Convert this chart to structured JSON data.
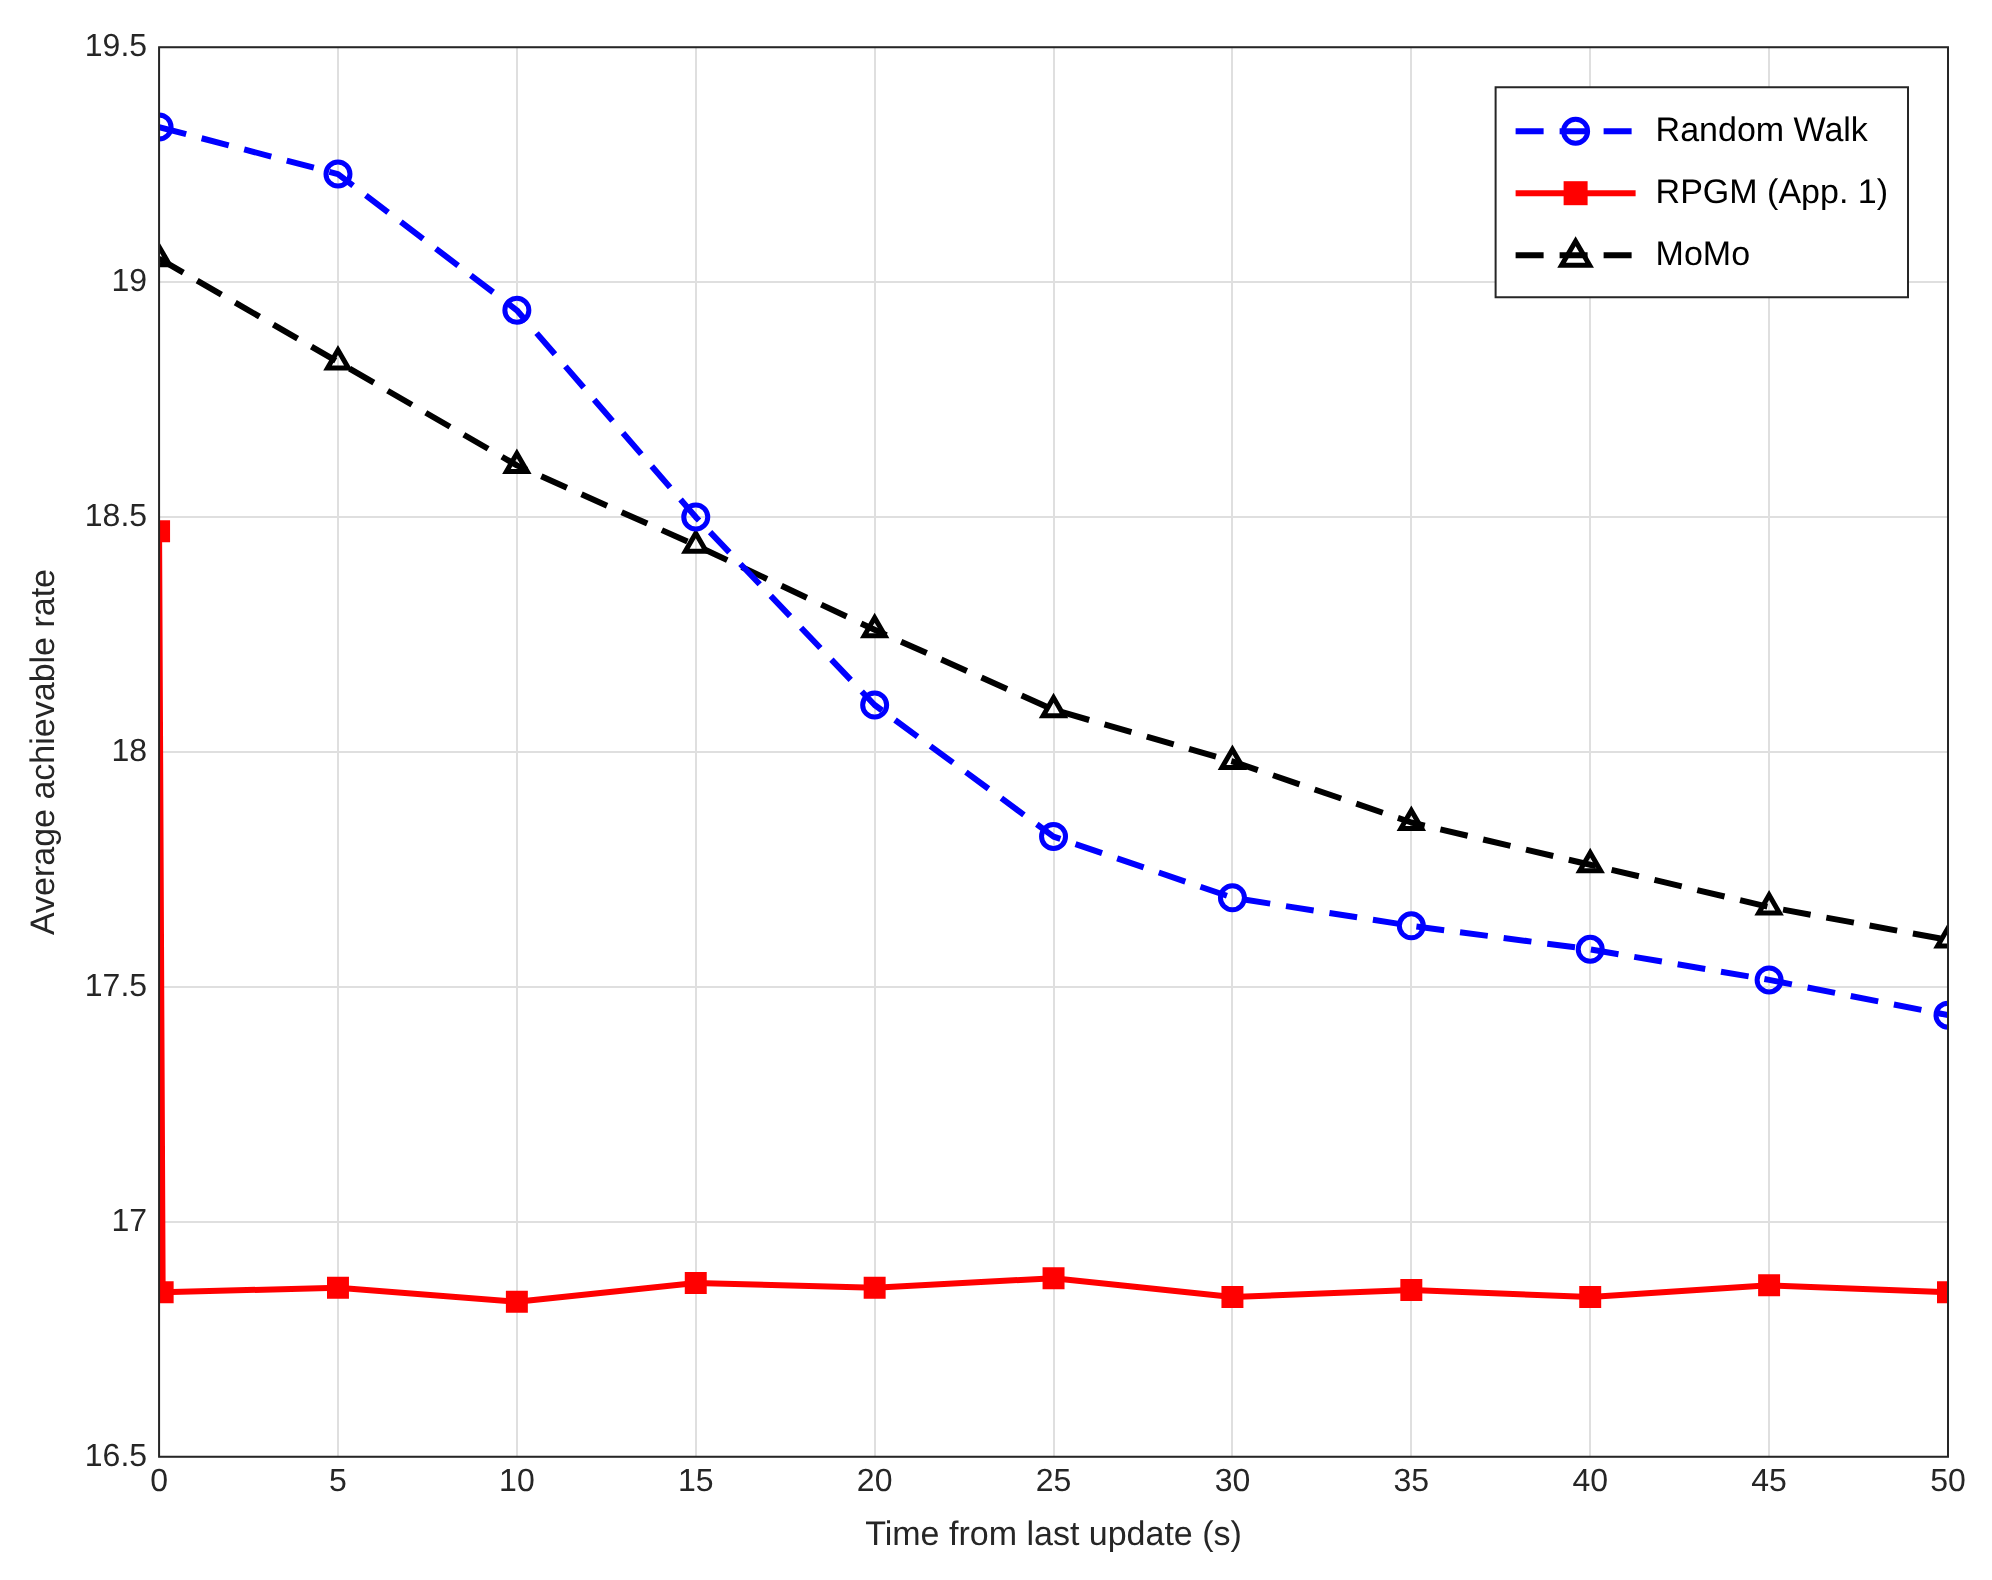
{
  "chart_data": {
    "type": "line",
    "xlabel": "Time from last update (s)",
    "ylabel": "Average achievable rate",
    "xlim": [
      0,
      50
    ],
    "xticks": [
      0,
      5,
      10,
      15,
      20,
      25,
      30,
      35,
      40,
      45,
      50
    ],
    "ylim": [
      16.5,
      19.5
    ],
    "yticks": [
      16.5,
      17,
      17.5,
      18,
      18.5,
      19,
      19.5
    ],
    "grid": true,
    "legend": "top right",
    "series": [
      {
        "name": "Random Walk",
        "color": "#0000ff",
        "marker": "circle",
        "line_style": "dashed",
        "x": [
          0,
          5,
          10,
          15,
          20,
          25,
          30,
          35,
          40,
          45,
          50
        ],
        "values": [
          19.33,
          19.23,
          18.94,
          18.5,
          18.1,
          17.82,
          17.69,
          17.63,
          17.58,
          17.515,
          17.44
        ]
      },
      {
        "name": "RPGM (App. 1)",
        "color": "#ff0000",
        "marker": "square",
        "line_style": "solid",
        "x": [
          0,
          0.1,
          5,
          10,
          15,
          20,
          25,
          30,
          35,
          40,
          45,
          50
        ],
        "values": [
          18.47,
          16.85,
          16.86,
          16.83,
          16.87,
          16.86,
          16.88,
          16.84,
          16.855,
          16.84,
          16.865,
          16.85
        ]
      },
      {
        "name": "MoMo",
        "color": "#000000",
        "marker": "triangle",
        "line_style": "dashed",
        "x": [
          0,
          5,
          10,
          15,
          20,
          25,
          30,
          35,
          40,
          45,
          50
        ],
        "values": [
          19.05,
          18.83,
          18.61,
          18.44,
          18.26,
          18.09,
          17.98,
          17.85,
          17.76,
          17.67,
          17.6
        ]
      }
    ]
  }
}
